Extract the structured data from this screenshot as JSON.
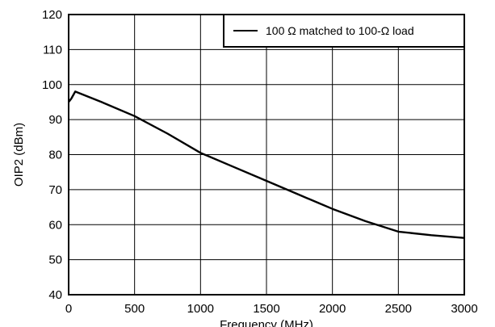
{
  "chart_data": {
    "type": "line",
    "title": "",
    "xlabel": "Frequency (MHz)",
    "ylabel": "OIP2 (dBm)",
    "xlim": [
      0,
      3000
    ],
    "ylim": [
      40,
      120
    ],
    "x_ticks": [
      0,
      500,
      1000,
      1500,
      2000,
      2500,
      3000
    ],
    "y_ticks": [
      40,
      50,
      60,
      70,
      80,
      90,
      100,
      110,
      120
    ],
    "x_tick_labels": [
      "0",
      "500",
      "1000",
      "1500",
      "2000",
      "2500",
      "3000"
    ],
    "y_tick_labels": [
      "40",
      "50",
      "60",
      "70",
      "80",
      "90",
      "100",
      "110",
      "120"
    ],
    "grid": true,
    "legend_position": "top-right",
    "series": [
      {
        "name": "100 Ω matched to 100-Ω load",
        "color": "#000000",
        "x": [
          0,
          20,
          50,
          250,
          500,
          750,
          1000,
          1250,
          1500,
          1750,
          2000,
          2250,
          2500,
          2750,
          3000
        ],
        "y": [
          95,
          96,
          98,
          95,
          91,
          86,
          80.5,
          76.5,
          72.5,
          68.5,
          64.5,
          61,
          58,
          57,
          56.2
        ]
      }
    ]
  }
}
